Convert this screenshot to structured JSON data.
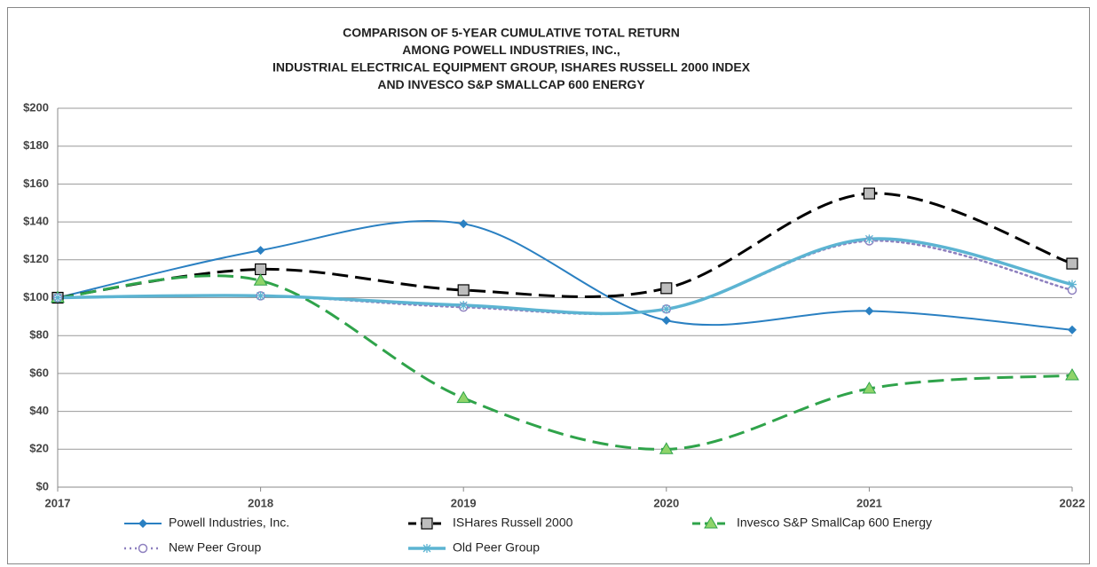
{
  "chart_data": {
    "type": "line",
    "title": [
      "COMPARISON OF 5-YEAR CUMULATIVE TOTAL RETURN",
      "AMONG POWELL INDUSTRIES, INC.,",
      "INDUSTRIAL ELECTRICAL  EQUIPMENT GROUP, ISHARES RUSSELL 2000 INDEX",
      "AND INVESCO S&P SMALLCAP 600 ENERGY"
    ],
    "categories": [
      "2017",
      "2018",
      "2019",
      "2020",
      "2021",
      "2022"
    ],
    "series": [
      {
        "name": "Powell Industries, Inc.",
        "color": "#2a80c2",
        "dash": "solid",
        "marker": "diamond",
        "values": [
          100,
          125,
          139,
          88,
          93,
          83
        ]
      },
      {
        "name": "ISHares Russell 2000",
        "color": "#000000",
        "dash": "dashed",
        "marker": "square",
        "values": [
          100,
          115,
          104,
          105,
          155,
          118
        ]
      },
      {
        "name": "Invesco S&P SmallCap 600 Energy",
        "color": "#2fa34a",
        "dash": "dashed",
        "marker": "triangle",
        "values": [
          100,
          109,
          47,
          20,
          52,
          59
        ]
      },
      {
        "name": "New Peer Group",
        "color": "#8e80bf",
        "dash": "dotted",
        "marker": "circle",
        "values": [
          100,
          101,
          95,
          94,
          130,
          104
        ]
      },
      {
        "name": "Old Peer Group",
        "color": "#5cb4d2",
        "dash": "solid",
        "marker": "asterisk",
        "values": [
          100,
          101,
          96,
          94,
          131,
          107
        ]
      }
    ],
    "ylim": [
      0,
      200
    ],
    "yticks": [
      {
        "value": 0,
        "label": "$0"
      },
      {
        "value": 20,
        "label": "$20"
      },
      {
        "value": 40,
        "label": "$40"
      },
      {
        "value": 60,
        "label": "$60"
      },
      {
        "value": 80,
        "label": "$80"
      },
      {
        "value": 100,
        "label": "$100"
      },
      {
        "value": 120,
        "label": "$120"
      },
      {
        "value": 140,
        "label": "$140"
      },
      {
        "value": 160,
        "label": "$160"
      },
      {
        "value": 180,
        "label": "$180"
      },
      {
        "value": 200,
        "label": "$200"
      }
    ],
    "grid": true,
    "legend": "bottom"
  }
}
